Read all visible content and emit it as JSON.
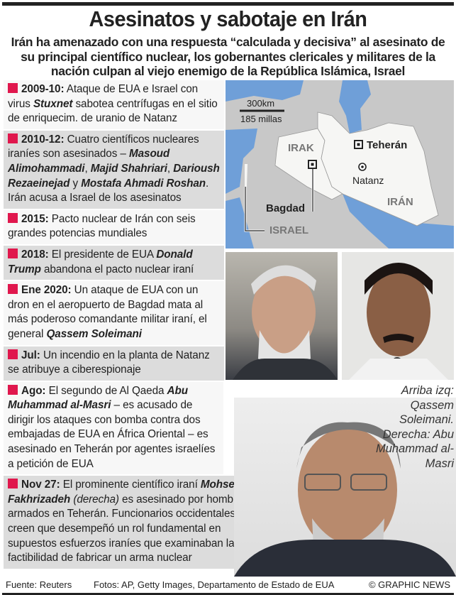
{
  "header": {
    "title": "Asesinatos y sabotaje en Irán",
    "subtitle": "Irán ha amenazado con una respuesta “calculada y decisiva” al asesinato de su principal científico nuclear, los gobernantes clericales y militares de la nación culpan al viejo enemigo de la República Islámica, Israel"
  },
  "colors": {
    "bullet": "#e0174d",
    "sea": "#6f9fd8",
    "land": "#c8c8c8",
    "highlight": "#f6f6f4"
  },
  "entries": [
    {
      "date": "2009-10:",
      "segments": [
        {
          "t": " Ataque de EUA e Israel con virus ",
          "s": ""
        },
        {
          "t": "Stuxnet",
          "s": "b"
        },
        {
          "t": " sabotea centrífugas en el sitio de enriquecim. de uranio de Natanz",
          "s": ""
        }
      ]
    },
    {
      "date": "2010-12:",
      "segments": [
        {
          "t": " Cuatro científicos nucleares iraníes son asesinados  – ",
          "s": ""
        },
        {
          "t": "Masoud Alimohammadi",
          "s": "b"
        },
        {
          "t": ", ",
          "s": ""
        },
        {
          "t": "Majid Shahriari",
          "s": "b"
        },
        {
          "t": ", ",
          "s": ""
        },
        {
          "t": "Darioush Rezaeinejad",
          "s": "b"
        },
        {
          "t": " y ",
          "s": ""
        },
        {
          "t": "Mostafa Ahmadi Roshan",
          "s": "b"
        },
        {
          "t": ". Irán acusa a Israel de los asesinatos",
          "s": ""
        }
      ]
    },
    {
      "date": "2015:",
      "segments": [
        {
          "t": " Pacto nuclear de Irán con seis grandes potencias mundiales",
          "s": ""
        }
      ]
    },
    {
      "date": "2018:",
      "segments": [
        {
          "t": " El presidente de EUA ",
          "s": ""
        },
        {
          "t": "Donald Trump",
          "s": "b"
        },
        {
          "t": " abandona el pacto nuclear iraní",
          "s": ""
        }
      ]
    },
    {
      "date": "Ene 2020:",
      "segments": [
        {
          "t": " Un ataque de EUA con un dron en el aeropuerto de Bagdad mata al más poderoso comandante militar iraní, el general ",
          "s": ""
        },
        {
          "t": "Qassem Soleimani",
          "s": "b"
        }
      ]
    },
    {
      "date": "Jul:",
      "segments": [
        {
          "t": " Un incendio en la planta de Natanz se atribuye a ciberespionaje",
          "s": ""
        }
      ]
    },
    {
      "date": "Ago:",
      "segments": [
        {
          "t": " El segundo de Al Qaeda ",
          "s": ""
        },
        {
          "t": "Abu Muhammad al-Masri",
          "s": "b"
        },
        {
          "t": " – es acusado de dirigir los ataques con bomba contra dos embajadas de EUA en África Oriental – es asesinado en Teherán por agentes israelíes a petición de EUA",
          "s": ""
        }
      ]
    },
    {
      "date": "Nov 27:",
      "segments": [
        {
          "t": " El prominente científico iraní ",
          "s": ""
        },
        {
          "t": "Mohsen Fakhrizadeh",
          "s": "b"
        },
        {
          "t": " (derecha)",
          "s": "i"
        },
        {
          "t": " es asesinado por hombres armados en Teherán. Funcionarios occidentales creen que desempeñó un rol fundamental en supuestos esfuerzos iraníes que examinaban la factibilidad de fabricar un arma nuclear",
          "s": ""
        }
      ]
    }
  ],
  "map": {
    "scale_km": "300km",
    "scale_mi": "185 millas",
    "labels": {
      "irak": "IRAK",
      "iran": "IRÁN",
      "israel": "ISRAEL",
      "teheran": "Teherán",
      "natanz": "Natanz",
      "bagdad": "Bagdad"
    }
  },
  "caption": "Arriba izq: Qassem Soleimani. Derecha: Abu Muhammad al-Masri",
  "footer": {
    "source": "Fuente: Reuters",
    "photos": "Fotos: AP, Getty Images, Departamento de Estado de EUA",
    "credit": "© GRAPHIC NEWS"
  }
}
